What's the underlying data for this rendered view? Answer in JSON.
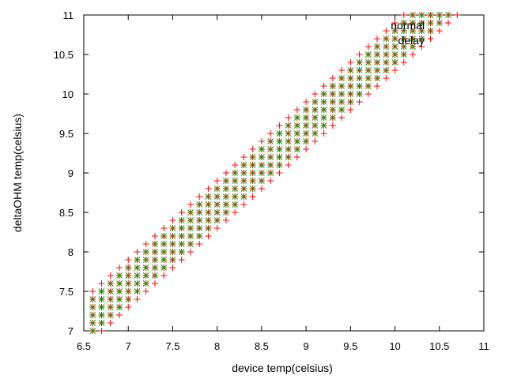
{
  "chart_data": {
    "type": "scatter",
    "title": "",
    "xlabel": "device temp(celsius)",
    "ylabel": "deltaOHM temp(celsius)",
    "xlim": [
      6.5,
      11
    ],
    "ylim": [
      7,
      11
    ],
    "xticks": [
      6.5,
      7,
      7.5,
      8,
      8.5,
      9,
      9.5,
      10,
      10.5,
      11
    ],
    "yticks": [
      7,
      7.5,
      8,
      8.5,
      9,
      9.5,
      10,
      10.5,
      11
    ],
    "grid": false,
    "legend_position": "top-right",
    "series": [
      {
        "name": "normal",
        "marker": "plus",
        "color": "#ff0000",
        "x_start": 6.6,
        "x_end": 10.8,
        "x_step": 0.1,
        "y_intercept": 0.6,
        "y_offsets": [
          -0.3,
          -0.2,
          -0.1,
          0.0,
          0.1,
          0.2,
          0.3
        ]
      },
      {
        "name": "delay",
        "marker": "cross",
        "color": "#00a000",
        "x_start": 6.6,
        "x_end": 10.8,
        "x_step": 0.1,
        "y_intercept": 0.6,
        "y_offsets": [
          -0.2,
          -0.1,
          0.0,
          0.1,
          0.2
        ]
      }
    ]
  }
}
